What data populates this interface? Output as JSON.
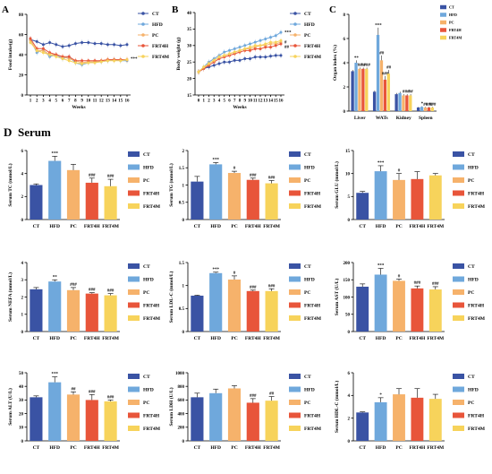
{
  "figure": {
    "section_letter": "D",
    "section_title": "Serum",
    "colors": {
      "CT": "#3a53a4",
      "HFD": "#6fa8dc",
      "PC": "#f6b26b",
      "FRT4H": "#e8553a",
      "FRT4M": "#f7d35b"
    }
  },
  "chart_data": [
    {
      "id": "A",
      "letter": "A",
      "type": "line",
      "xlabel": "Weeks",
      "ylabel": "Food intake(g)",
      "x": [
        1,
        2,
        3,
        4,
        5,
        6,
        7,
        8,
        9,
        10,
        11,
        12,
        13,
        14,
        15,
        16
      ],
      "xticks": [
        1,
        2,
        3,
        4,
        5,
        6,
        7,
        8,
        9,
        10,
        11,
        12,
        13,
        14,
        15,
        16
      ],
      "ylim": [
        0,
        80
      ],
      "yticks": [
        0,
        20,
        40,
        60,
        80
      ],
      "series": [
        {
          "name": "CT",
          "color": "#3a53a4",
          "values": [
            55,
            53,
            50,
            52,
            50,
            48,
            49,
            51,
            52,
            52,
            51,
            51,
            50,
            50,
            49,
            50
          ]
        },
        {
          "name": "HFD",
          "color": "#6fa8dc",
          "values": [
            55,
            42,
            45,
            38,
            40,
            36,
            38,
            32,
            30,
            32,
            33,
            33,
            34,
            35,
            34,
            34
          ]
        },
        {
          "name": "PC",
          "color": "#f6b26b",
          "values": [
            54,
            44,
            44,
            40,
            40,
            38,
            36,
            34,
            32,
            33,
            33,
            34,
            35,
            35,
            35,
            35
          ]
        },
        {
          "name": "FRT4H",
          "color": "#e8553a",
          "values": [
            56,
            46,
            46,
            42,
            40,
            38,
            38,
            34,
            34,
            34,
            34,
            34,
            35,
            35,
            35,
            35
          ]
        },
        {
          "name": "FRT4M",
          "color": "#f7d35b",
          "values": [
            52,
            44,
            42,
            40,
            38,
            36,
            34,
            32,
            31,
            32,
            32,
            33,
            34,
            34,
            34,
            35
          ]
        }
      ],
      "annotations": [
        {
          "text": "***",
          "x": 16.4,
          "y": 36
        }
      ]
    },
    {
      "id": "B",
      "letter": "B",
      "type": "line",
      "xlabel": "Weeks",
      "ylabel": "Body weight (g)",
      "x": [
        0,
        1,
        2,
        3,
        4,
        5,
        6,
        7,
        8,
        9,
        10,
        11,
        12,
        13,
        14,
        15,
        16
      ],
      "xticks": [
        0,
        1,
        2,
        3,
        4,
        5,
        6,
        7,
        8,
        9,
        10,
        11,
        12,
        13,
        14,
        15,
        16
      ],
      "ylim": [
        15,
        40
      ],
      "yticks": [
        15,
        20,
        25,
        30,
        35,
        40
      ],
      "series": [
        {
          "name": "CT",
          "color": "#3a53a4",
          "values": [
            22,
            23,
            23.5,
            24,
            24.5,
            25,
            25,
            25.5,
            25.5,
            26,
            26,
            26.5,
            26.5,
            26.5,
            26.8,
            27,
            27
          ]
        },
        {
          "name": "HFD",
          "color": "#6fa8dc",
          "values": [
            22,
            23.5,
            25,
            26,
            27,
            28,
            28.5,
            29,
            29.5,
            30,
            30.5,
            31,
            31.5,
            32,
            32.5,
            33,
            34
          ]
        },
        {
          "name": "PC",
          "color": "#f6b26b",
          "values": [
            22,
            23,
            24.5,
            25.5,
            26.5,
            27,
            27.5,
            28,
            28.5,
            29,
            29,
            29.5,
            30,
            30,
            30.5,
            30.5,
            31
          ]
        },
        {
          "name": "FRT4H",
          "color": "#e8553a",
          "values": [
            22,
            23,
            24,
            25,
            26,
            26.5,
            27,
            27.5,
            28,
            28.5,
            28.5,
            29,
            29,
            29.5,
            29.5,
            30,
            30.5
          ]
        },
        {
          "name": "FRT4M",
          "color": "#f7d35b",
          "values": [
            22,
            23.5,
            24.5,
            25.5,
            26.5,
            27,
            27.5,
            28,
            28.5,
            29,
            29.5,
            30,
            30,
            30.5,
            31,
            31,
            31.5
          ]
        }
      ],
      "annotations": [
        {
          "text": "***",
          "x": 16.3,
          "y": 34
        },
        {
          "text": "#",
          "x": 16.3,
          "y": 31
        },
        {
          "text": "##",
          "x": 16.3,
          "y": 29.6
        }
      ]
    },
    {
      "id": "C",
      "letter": "C",
      "type": "bar",
      "ylabel": "Organ index (%)",
      "categories": [
        "Liver",
        "WATs",
        "Kidney",
        "Spleen"
      ],
      "ylim": [
        0,
        8
      ],
      "yticks": [
        0,
        2,
        4,
        6,
        8
      ],
      "series": [
        {
          "name": "CT",
          "color": "#3a53a4",
          "values": [
            3.3,
            1.6,
            1.4,
            0.3
          ],
          "errors": [
            0.1,
            0.1,
            0.1,
            0.05
          ]
        },
        {
          "name": "HFD",
          "color": "#6fa8dc",
          "values": [
            4.0,
            6.3,
            1.5,
            0.35
          ],
          "errors": [
            0.2,
            0.6,
            0.1,
            0.05
          ]
        },
        {
          "name": "PC",
          "color": "#f6b26b",
          "values": [
            3.5,
            4.2,
            1.3,
            0.3
          ],
          "errors": [
            0.1,
            0.4,
            0.1,
            0.05
          ]
        },
        {
          "name": "FRT4H",
          "color": "#e8553a",
          "values": [
            3.5,
            2.6,
            1.3,
            0.3
          ],
          "errors": [
            0.1,
            0.3,
            0.1,
            0.05
          ]
        },
        {
          "name": "FRT4M",
          "color": "#f7d35b",
          "values": [
            3.5,
            3.1,
            1.3,
            0.3
          ],
          "errors": [
            0.1,
            0.3,
            0.1,
            0.05
          ]
        }
      ],
      "sig": [
        [
          "",
          "**",
          "##",
          "##",
          "###"
        ],
        [
          "",
          "***",
          "##",
          "###",
          "##"
        ],
        [
          "",
          "",
          "#",
          "##",
          "##"
        ],
        [
          "",
          "*",
          "##",
          "###",
          "###"
        ]
      ]
    },
    {
      "id": "TC",
      "type": "bar",
      "ylabel": "Serum TC (mmol/L)",
      "ylim": [
        0,
        6
      ],
      "yticks": [
        0,
        2,
        4,
        6
      ],
      "categories": [
        "CT",
        "HFD",
        "PC",
        "FRT4H",
        "FRT4M"
      ],
      "values": [
        3.0,
        5.1,
        4.3,
        3.2,
        2.9
      ],
      "errors": [
        0.1,
        0.4,
        0.5,
        0.4,
        0.6
      ],
      "sig": [
        "",
        "***",
        "",
        "###",
        "###"
      ]
    },
    {
      "id": "TG",
      "type": "bar",
      "ylabel": "Serum TG (mmol/L)",
      "ylim": [
        0,
        2.0
      ],
      "yticks": [
        0,
        0.5,
        1.0,
        1.5,
        2.0
      ],
      "categories": [
        "CT",
        "HFD",
        "PC",
        "FRT4H",
        "FRT4M"
      ],
      "values": [
        1.1,
        1.6,
        1.35,
        1.15,
        1.05
      ],
      "errors": [
        0.15,
        0.05,
        0.05,
        0.05,
        0.08
      ],
      "sig": [
        "",
        "***",
        "#",
        "###",
        "###"
      ]
    },
    {
      "id": "GLU",
      "type": "bar",
      "ylabel": "Serum GLU (mmol/L)",
      "ylim": [
        0,
        15
      ],
      "yticks": [
        0,
        5,
        10,
        15
      ],
      "categories": [
        "CT",
        "HFD",
        "PC",
        "FRT4H",
        "FRT4M"
      ],
      "values": [
        5.8,
        10.5,
        8.6,
        8.8,
        9.6
      ],
      "errors": [
        0.3,
        1.2,
        1.4,
        1.6,
        0.4
      ],
      "sig": [
        "",
        "***",
        "#",
        "",
        ""
      ]
    },
    {
      "id": "NEFA",
      "type": "bar",
      "ylabel": "Serum NEFA (mmol/L)",
      "ylim": [
        0,
        4
      ],
      "yticks": [
        0,
        1,
        2,
        3,
        4
      ],
      "categories": [
        "CT",
        "HFD",
        "PC",
        "FRT4H",
        "FRT4M"
      ],
      "values": [
        2.45,
        2.9,
        2.4,
        2.2,
        2.1
      ],
      "errors": [
        0.1,
        0.1,
        0.15,
        0.05,
        0.1
      ],
      "sig": [
        "",
        "**",
        "###",
        "###",
        "###"
      ]
    },
    {
      "id": "LDLC",
      "type": "bar",
      "ylabel": "Serum LDL-C (mmol/L)",
      "ylim": [
        0,
        1.5
      ],
      "yticks": [
        0,
        0.5,
        1.0,
        1.5
      ],
      "categories": [
        "CT",
        "HFD",
        "PC",
        "FRT4H",
        "FRT4M"
      ],
      "values": [
        0.78,
        1.27,
        1.13,
        0.88,
        0.88
      ],
      "errors": [
        0.01,
        0.02,
        0.08,
        0.02,
        0.05
      ],
      "sig": [
        "",
        "***",
        "#",
        "###",
        "###"
      ]
    },
    {
      "id": "AST",
      "type": "bar",
      "ylabel": "Serum AST (U/L)",
      "ylim": [
        0,
        200
      ],
      "yticks": [
        0,
        50,
        100,
        150,
        200
      ],
      "categories": [
        "CT",
        "HFD",
        "PC",
        "FRT4H",
        "FRT4M"
      ],
      "values": [
        130,
        165,
        147,
        125,
        122
      ],
      "errors": [
        8,
        18,
        5,
        7,
        8
      ],
      "sig": [
        "",
        "***",
        "#",
        "###",
        "###"
      ]
    },
    {
      "id": "ALT",
      "type": "bar",
      "ylabel": "Serum ALT (U/L)",
      "ylim": [
        0,
        50
      ],
      "yticks": [
        0,
        10,
        20,
        30,
        40,
        50
      ],
      "categories": [
        "CT",
        "HFD",
        "PC",
        "FRT4H",
        "FRT4M"
      ],
      "values": [
        32,
        43,
        34,
        30,
        29
      ],
      "errors": [
        1,
        4,
        2,
        4,
        1
      ],
      "sig": [
        "",
        "***",
        "##",
        "###",
        "###"
      ]
    },
    {
      "id": "LDH",
      "type": "bar",
      "ylabel": "Serum LDH (U/L)",
      "ylim": [
        0,
        1000
      ],
      "yticks": [
        0,
        200,
        400,
        600,
        800,
        1000
      ],
      "categories": [
        "CT",
        "HFD",
        "PC",
        "FRT4H",
        "FRT4M"
      ],
      "values": [
        640,
        700,
        770,
        560,
        590
      ],
      "errors": [
        60,
        60,
        40,
        60,
        60
      ],
      "sig": [
        "",
        "",
        "",
        "###",
        "##"
      ]
    },
    {
      "id": "HDLC",
      "type": "bar",
      "ylabel": "Serum HDL-C (mmol/L)",
      "ylim": [
        0,
        6
      ],
      "yticks": [
        0,
        2,
        4,
        6
      ],
      "categories": [
        "CT",
        "HFD",
        "PC",
        "FRT4H",
        "FRT4M"
      ],
      "values": [
        2.5,
        3.4,
        4.1,
        3.8,
        3.7
      ],
      "errors": [
        0.05,
        0.4,
        0.5,
        0.8,
        0.4
      ],
      "sig": [
        "",
        "*",
        "",
        "",
        ""
      ]
    }
  ]
}
